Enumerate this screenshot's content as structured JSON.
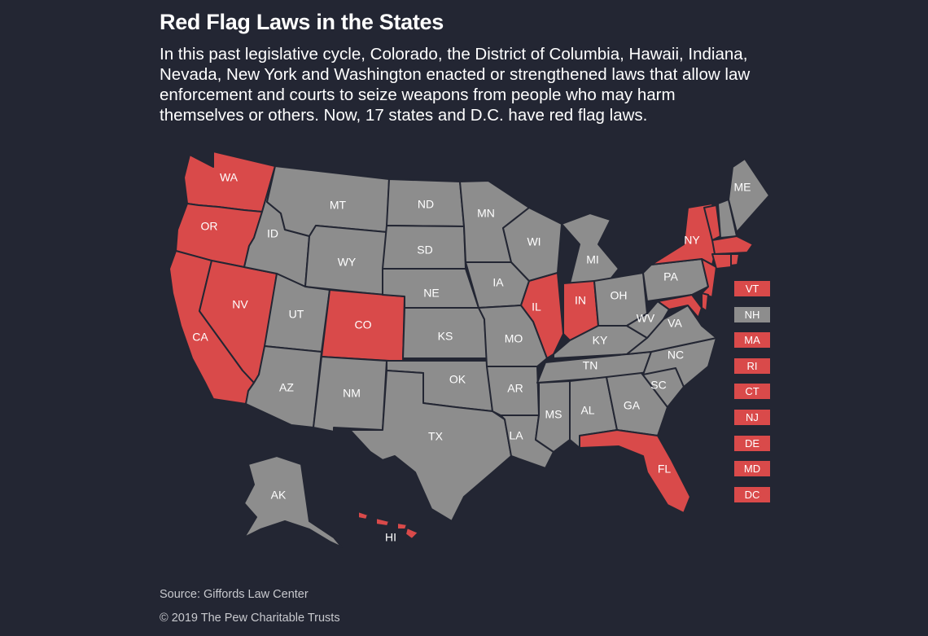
{
  "header": {
    "title": "Red Flag Laws in the States",
    "subtitle": "In this past legislative cycle, Colorado, the District of Columbia, Hawaii, Indiana, Nevada, New York and Washington enacted or strengthened laws that allow law enforcement and courts to seize weapons from people who may harm themselves or others. Now, 17 states and D.C. have red flag laws."
  },
  "colors": {
    "red_flag_law": "#d94a4a",
    "no_law": "#8d8d8d",
    "background": "#232633"
  },
  "states": [
    {
      "id": "WA",
      "label": "WA",
      "red_flag": true
    },
    {
      "id": "OR",
      "label": "OR",
      "red_flag": true
    },
    {
      "id": "CA",
      "label": "CA",
      "red_flag": true
    },
    {
      "id": "NV",
      "label": "NV",
      "red_flag": true
    },
    {
      "id": "ID",
      "label": "ID",
      "red_flag": false
    },
    {
      "id": "MT",
      "label": "MT",
      "red_flag": false
    },
    {
      "id": "WY",
      "label": "WY",
      "red_flag": false
    },
    {
      "id": "UT",
      "label": "UT",
      "red_flag": false
    },
    {
      "id": "CO",
      "label": "CO",
      "red_flag": true
    },
    {
      "id": "AZ",
      "label": "AZ",
      "red_flag": false
    },
    {
      "id": "NM",
      "label": "NM",
      "red_flag": false
    },
    {
      "id": "ND",
      "label": "ND",
      "red_flag": false
    },
    {
      "id": "SD",
      "label": "SD",
      "red_flag": false
    },
    {
      "id": "NE",
      "label": "NE",
      "red_flag": false
    },
    {
      "id": "KS",
      "label": "KS",
      "red_flag": false
    },
    {
      "id": "OK",
      "label": "OK",
      "red_flag": false
    },
    {
      "id": "TX",
      "label": "TX",
      "red_flag": false
    },
    {
      "id": "MN",
      "label": "MN",
      "red_flag": false
    },
    {
      "id": "IA",
      "label": "IA",
      "red_flag": false
    },
    {
      "id": "MO",
      "label": "MO",
      "red_flag": false
    },
    {
      "id": "AR",
      "label": "AR",
      "red_flag": false
    },
    {
      "id": "LA",
      "label": "LA",
      "red_flag": false
    },
    {
      "id": "WI",
      "label": "WI",
      "red_flag": false
    },
    {
      "id": "IL",
      "label": "IL",
      "red_flag": true
    },
    {
      "id": "MI",
      "label": "MI",
      "red_flag": false
    },
    {
      "id": "IN",
      "label": "IN",
      "red_flag": true
    },
    {
      "id": "OH",
      "label": "OH",
      "red_flag": false
    },
    {
      "id": "KY",
      "label": "KY",
      "red_flag": false
    },
    {
      "id": "TN",
      "label": "TN",
      "red_flag": false
    },
    {
      "id": "MS",
      "label": "MS",
      "red_flag": false
    },
    {
      "id": "AL",
      "label": "AL",
      "red_flag": false
    },
    {
      "id": "GA",
      "label": "GA",
      "red_flag": false
    },
    {
      "id": "FL",
      "label": "FL",
      "red_flag": true
    },
    {
      "id": "SC",
      "label": "SC",
      "red_flag": false
    },
    {
      "id": "NC",
      "label": "NC",
      "red_flag": false
    },
    {
      "id": "VA",
      "label": "VA",
      "red_flag": false
    },
    {
      "id": "WV",
      "label": "WV",
      "red_flag": false
    },
    {
      "id": "PA",
      "label": "PA",
      "red_flag": false
    },
    {
      "id": "NY",
      "label": "NY",
      "red_flag": true
    },
    {
      "id": "ME",
      "label": "ME",
      "red_flag": false
    },
    {
      "id": "AK",
      "label": "AK",
      "red_flag": false
    },
    {
      "id": "HI",
      "label": "HI",
      "red_flag": true
    }
  ],
  "legend": [
    {
      "label": "VT",
      "red_flag": true
    },
    {
      "label": "NH",
      "red_flag": false
    },
    {
      "label": "MA",
      "red_flag": true
    },
    {
      "label": "RI",
      "red_flag": true
    },
    {
      "label": "CT",
      "red_flag": true
    },
    {
      "label": "NJ",
      "red_flag": true
    },
    {
      "label": "DE",
      "red_flag": true
    },
    {
      "label": "MD",
      "red_flag": true
    },
    {
      "label": "DC",
      "red_flag": true
    }
  ],
  "footer": {
    "source": "Source: Giffords Law Center",
    "copyright": "© 2019 The Pew Charitable Trusts"
  }
}
